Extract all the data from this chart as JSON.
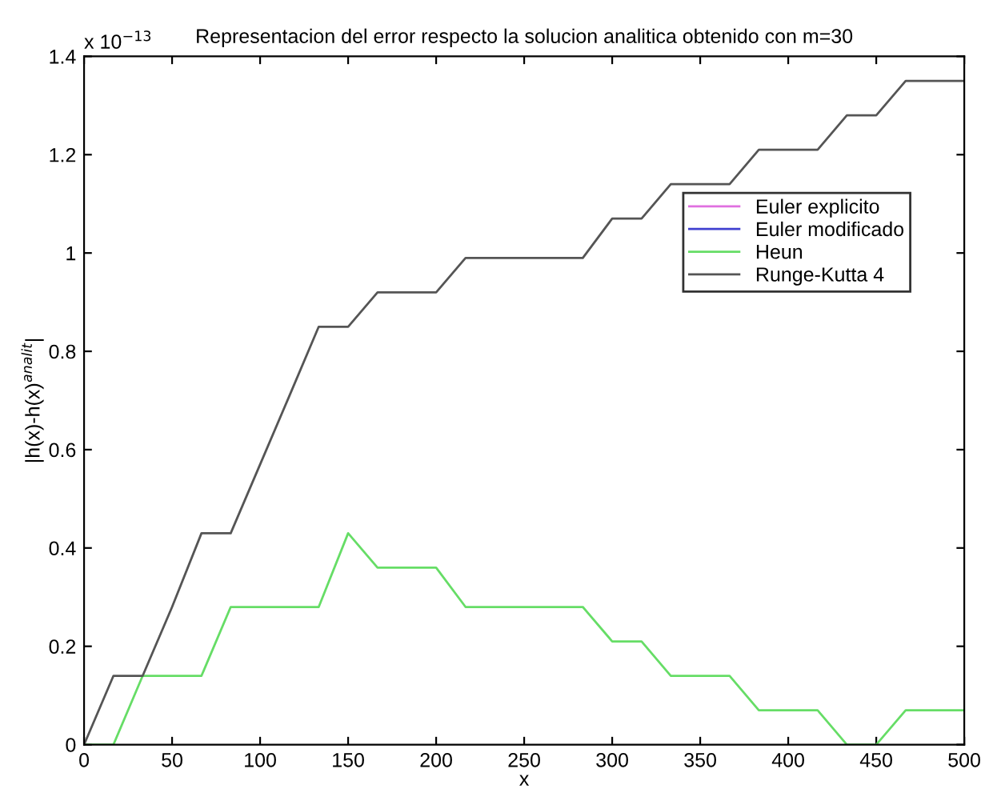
{
  "chart_data": {
    "type": "line",
    "title": "Representacion del error respecto la solucion analitica obtenido con m=30",
    "xlabel": "x",
    "ylabel": "|h(x)-h(x)$^{analit}$|",
    "annotations": [
      "x 10$^{−13}$"
    ],
    "x": [
      0,
      16.7,
      33.3,
      50,
      66.7,
      83.3,
      100,
      116.7,
      133.3,
      150,
      166.7,
      183.3,
      200,
      216.7,
      233.3,
      250,
      266.7,
      283.3,
      300,
      316.7,
      333.3,
      350,
      366.7,
      383.3,
      400,
      416.7,
      433.3,
      450,
      466.7,
      483.3,
      500
    ],
    "series": [
      {
        "name": "Euler explicito",
        "color": "#e070e0",
        "values": [
          null,
          null,
          null,
          null,
          null,
          null,
          null,
          null,
          null,
          null,
          null,
          null,
          null,
          null,
          null,
          null,
          null,
          null,
          null,
          null,
          null,
          null,
          null,
          null,
          null,
          null,
          null,
          null,
          null,
          null,
          null
        ]
      },
      {
        "name": "Euler modificado",
        "color": "#4040d0",
        "values": [
          null,
          null,
          null,
          null,
          null,
          null,
          null,
          null,
          null,
          null,
          null,
          null,
          null,
          null,
          null,
          null,
          null,
          null,
          null,
          null,
          null,
          null,
          null,
          null,
          null,
          null,
          null,
          null,
          null,
          null,
          null
        ]
      },
      {
        "name": "Heun",
        "color": "#66dd66",
        "values": [
          0,
          0,
          0.14,
          0.14,
          0.14,
          0.28,
          0.28,
          0.28,
          0.28,
          0.43,
          0.36,
          0.36,
          0.36,
          0.28,
          0.28,
          0.28,
          0.28,
          0.28,
          0.21,
          0.21,
          0.14,
          0.14,
          0.14,
          0.07,
          0.07,
          0.07,
          0,
          0,
          0.07,
          0.07,
          0.07
        ]
      },
      {
        "name": "Runge-Kutta 4",
        "color": "#555555",
        "values": [
          0,
          0.14,
          0.14,
          0.28,
          0.43,
          0.43,
          0.57,
          0.71,
          0.85,
          0.85,
          0.92,
          0.92,
          0.92,
          0.99,
          0.99,
          0.99,
          0.99,
          0.99,
          1.07,
          1.07,
          1.14,
          1.14,
          1.14,
          1.21,
          1.21,
          1.21,
          1.28,
          1.28,
          1.35,
          1.35,
          1.35
        ]
      }
    ],
    "xlim": [
      0,
      500
    ],
    "xticks": [
      0,
      50,
      100,
      150,
      200,
      250,
      300,
      350,
      400,
      450,
      500
    ],
    "ylim": [
      0,
      1.4
    ],
    "yticks": [
      0,
      0.2,
      0.4,
      0.6,
      0.8,
      1,
      1.2,
      1.4
    ],
    "grid": false,
    "legend": "right",
    "marker": "none",
    "line_style": "solid"
  }
}
